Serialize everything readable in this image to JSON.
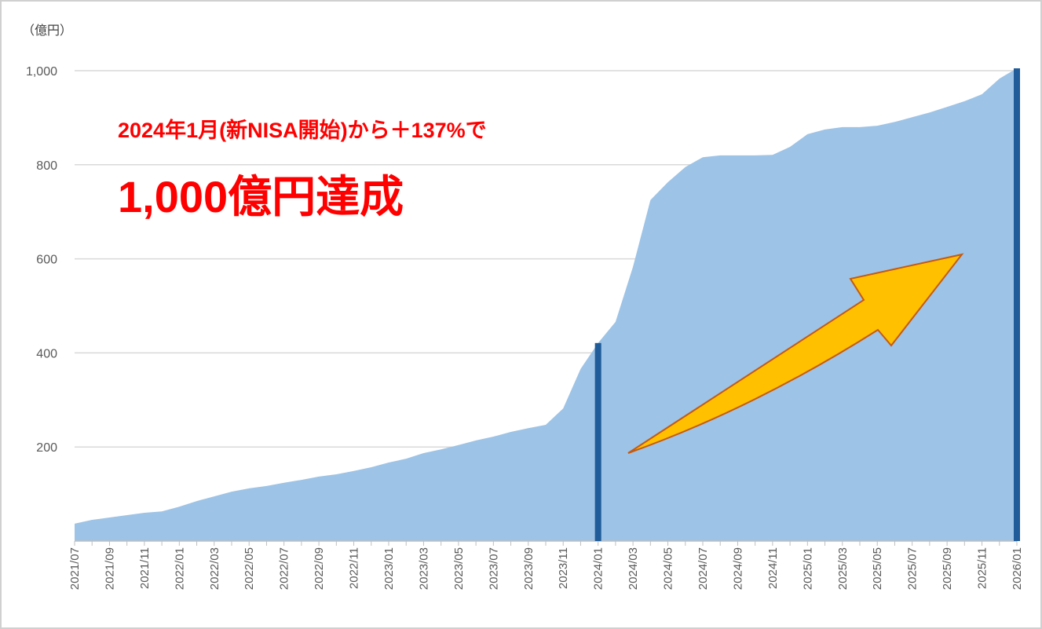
{
  "chart_data": {
    "type": "area",
    "unit_label": "（億円）",
    "annotations": [
      "2024年1月(新NISA開始)から＋137%で",
      "1,000億円達成"
    ],
    "categories": [
      "2021/07",
      null,
      "2021/09",
      null,
      "2021/11",
      null,
      "2022/01",
      null,
      "2022/03",
      null,
      "2022/05",
      null,
      "2022/07",
      null,
      "2022/09",
      null,
      "2022/11",
      null,
      "2023/01",
      null,
      "2023/03",
      null,
      "2023/05",
      null,
      "2023/07",
      null,
      "2023/09",
      null,
      "2023/11",
      null,
      "2024/01",
      null,
      "2024/03",
      null,
      "2024/05",
      null,
      "2024/07",
      null,
      "2024/09",
      null,
      "2024/11",
      null,
      "2025/01",
      null,
      "2025/03",
      null,
      "2025/05",
      null,
      "2025/07",
      null,
      "2025/09",
      null,
      "2025/11",
      null,
      "2026/01"
    ],
    "values": [
      37,
      45,
      50,
      55,
      60,
      63,
      73,
      85,
      95,
      105,
      112,
      117,
      124,
      130,
      137,
      142,
      149,
      157,
      167,
      175,
      187,
      195,
      204,
      214,
      222,
      232,
      240,
      247,
      282,
      366,
      421,
      466,
      583,
      725,
      763,
      795,
      816,
      820,
      820,
      820,
      821,
      838,
      865,
      875,
      880,
      880,
      883,
      891,
      901,
      911,
      923,
      935,
      950,
      983,
      1005
    ],
    "color": "#9dc3e6",
    "highlight_categories": [
      "2024/01",
      "2026/01"
    ],
    "highlight_color": "#1f5c99",
    "ylim": [
      0,
      1000
    ],
    "yticks": [
      200,
      400,
      600,
      800,
      {
        "value": 1000,
        "label": "1,000"
      }
    ],
    "grid": true
  }
}
